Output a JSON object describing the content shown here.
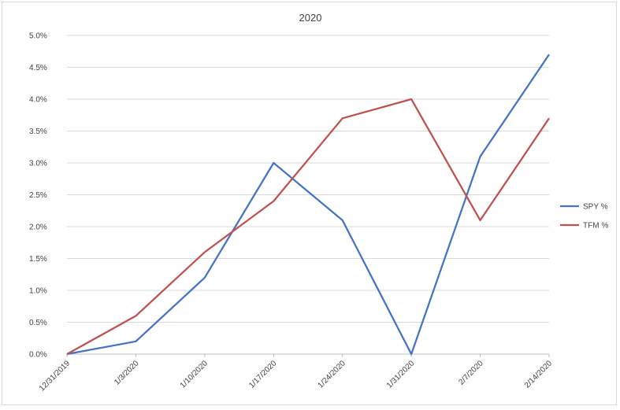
{
  "chart_data": {
    "type": "line",
    "title": "2020",
    "xlabel": "",
    "ylabel": "",
    "categories": [
      "12/31/2019",
      "1/3/2020",
      "1/10/2020",
      "1/17/2020",
      "1/24/2020",
      "1/31/2020",
      "2/7/2020",
      "2/14/2020"
    ],
    "series": [
      {
        "name": "SPY %",
        "color": "#4472C4",
        "values": [
          0.0,
          0.2,
          1.2,
          3.0,
          2.1,
          0.0,
          3.1,
          4.7
        ]
      },
      {
        "name": "TFM %",
        "color": "#C0504D",
        "values": [
          0.0,
          0.6,
          1.6,
          2.4,
          3.7,
          4.0,
          2.1,
          3.7
        ]
      }
    ],
    "ylim": [
      0,
      5.0
    ],
    "yticks": [
      "0.0%",
      "0.5%",
      "1.0%",
      "1.5%",
      "2.0%",
      "2.5%",
      "3.0%",
      "3.5%",
      "4.0%",
      "4.5%",
      "5.0%"
    ],
    "grid": true,
    "legend_position": "right"
  }
}
